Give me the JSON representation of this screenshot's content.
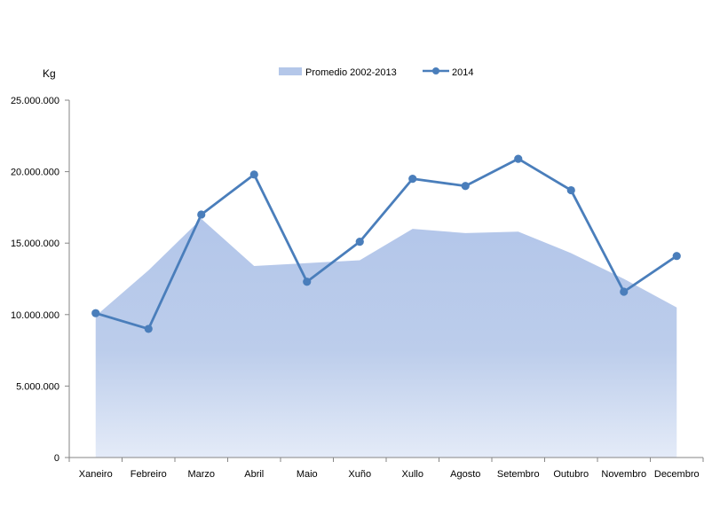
{
  "chart_data": {
    "type": "area",
    "ylabel": "Kg",
    "ylim": [
      0,
      25000000
    ],
    "y_ticks": [
      "0",
      "5.000.000",
      "10.000.000",
      "15.000.000",
      "20.000.000",
      "25.000.000"
    ],
    "y_tick_values": [
      0,
      5000000,
      10000000,
      15000000,
      20000000,
      25000000
    ],
    "categories": [
      "Xaneiro",
      "Febreiro",
      "Marzo",
      "Abril",
      "Maio",
      "Xuño",
      "Xullo",
      "Agosto",
      "Setembro",
      "Outubro",
      "Novembro",
      "Decembro"
    ],
    "legend_position": "top",
    "grid": false,
    "series": [
      {
        "name": "Promedio 2002-2013",
        "type": "area",
        "color": "#b4c7e9",
        "values": [
          9900000,
          13100000,
          16700000,
          13400000,
          13600000,
          13800000,
          16000000,
          15700000,
          15800000,
          14300000,
          12500000,
          10500000
        ]
      },
      {
        "name": "2014",
        "type": "line",
        "color": "#4a7ebb",
        "values": [
          10100000,
          9000000,
          17000000,
          19800000,
          12300000,
          15100000,
          19500000,
          19000000,
          20900000,
          18700000,
          11600000,
          14100000
        ]
      }
    ]
  }
}
